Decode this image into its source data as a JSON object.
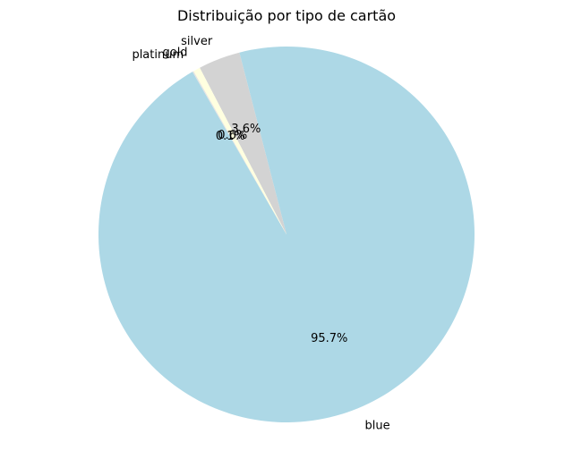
{
  "chart_data": {
    "type": "pie",
    "title": "Distribuição por tipo de cartão",
    "slices": [
      {
        "label": "blue",
        "value": 95.7,
        "pct_label": "95.7%",
        "color": "#add8e6"
      },
      {
        "label": "silver",
        "value": 3.6,
        "pct_label": "3.6%",
        "color": "#d3d3d3"
      },
      {
        "label": "gold",
        "value": 0.6,
        "pct_label": "0.6%",
        "color": "#ffffe0"
      },
      {
        "label": "platinum",
        "value": 0.1,
        "pct_label": "0.1%",
        "color": "#e5e4e2"
      }
    ],
    "start_angle": 120,
    "direction": "counterclockwise",
    "grid": false
  }
}
